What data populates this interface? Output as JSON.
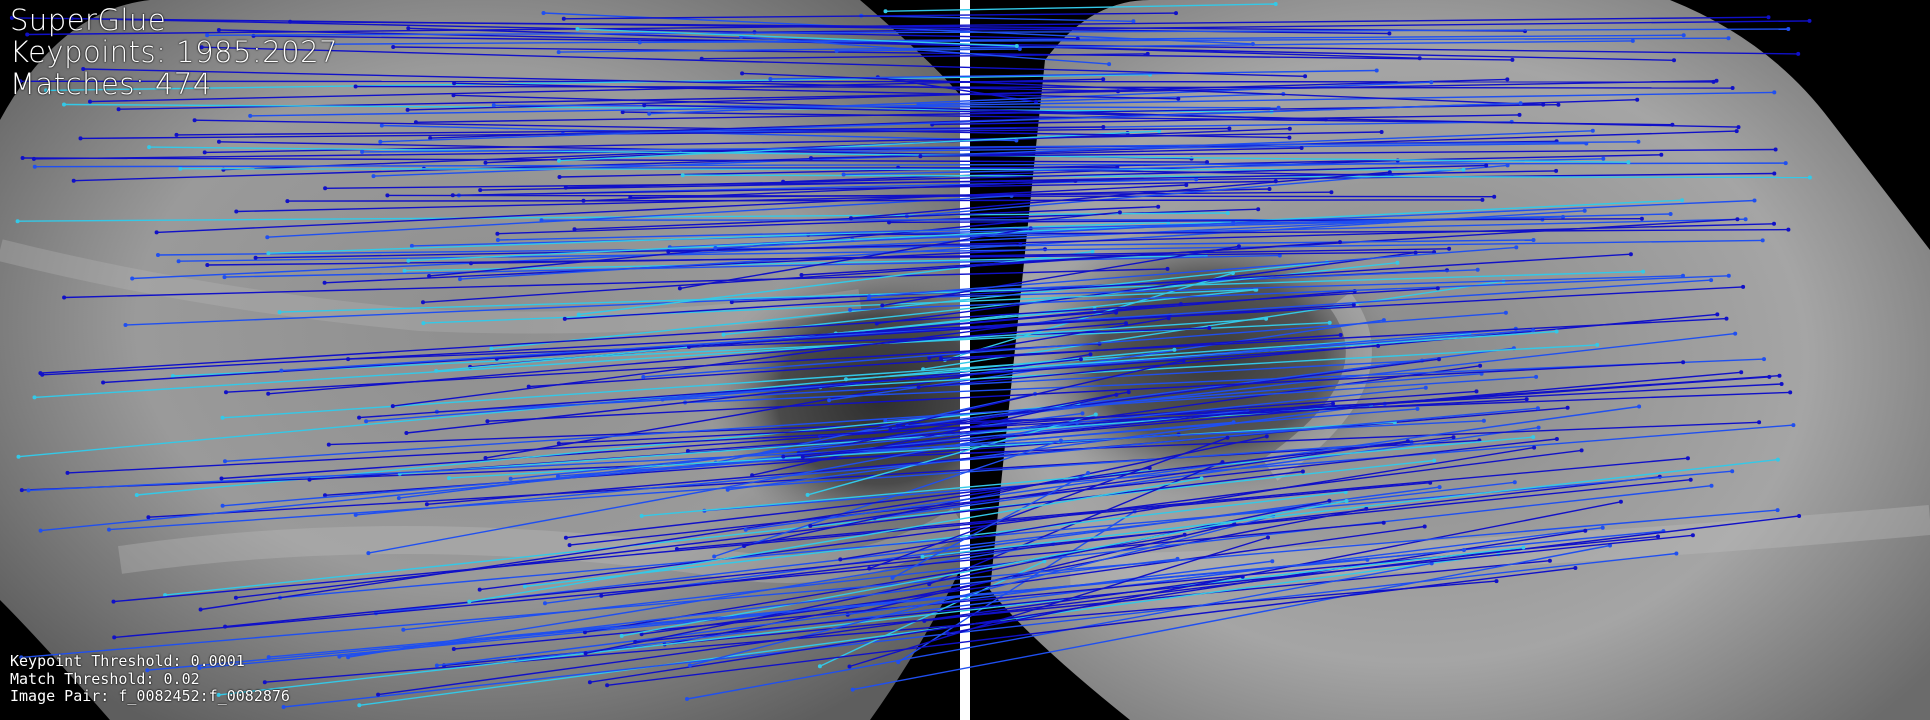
{
  "title": "SuperGlue",
  "keypoints_label": "Keypoints:",
  "keypoints_value": "1985:2027",
  "matches_label": "Matches:",
  "matches_value": "474",
  "keypoint_threshold_label": "Keypoint Threshold:",
  "keypoint_threshold_value": "0.0001",
  "match_threshold_label": "Match Threshold:",
  "match_threshold_value": "0.02",
  "image_pair_label": "Image Pair:",
  "image_pair_value": "f_0082452:f_0082876",
  "colors": {
    "match_low": "#1010c8",
    "match_mid": "#1f4ff0",
    "match_high": "#33c9e8",
    "text": "#ffffff",
    "divider": "#ffffff"
  }
}
